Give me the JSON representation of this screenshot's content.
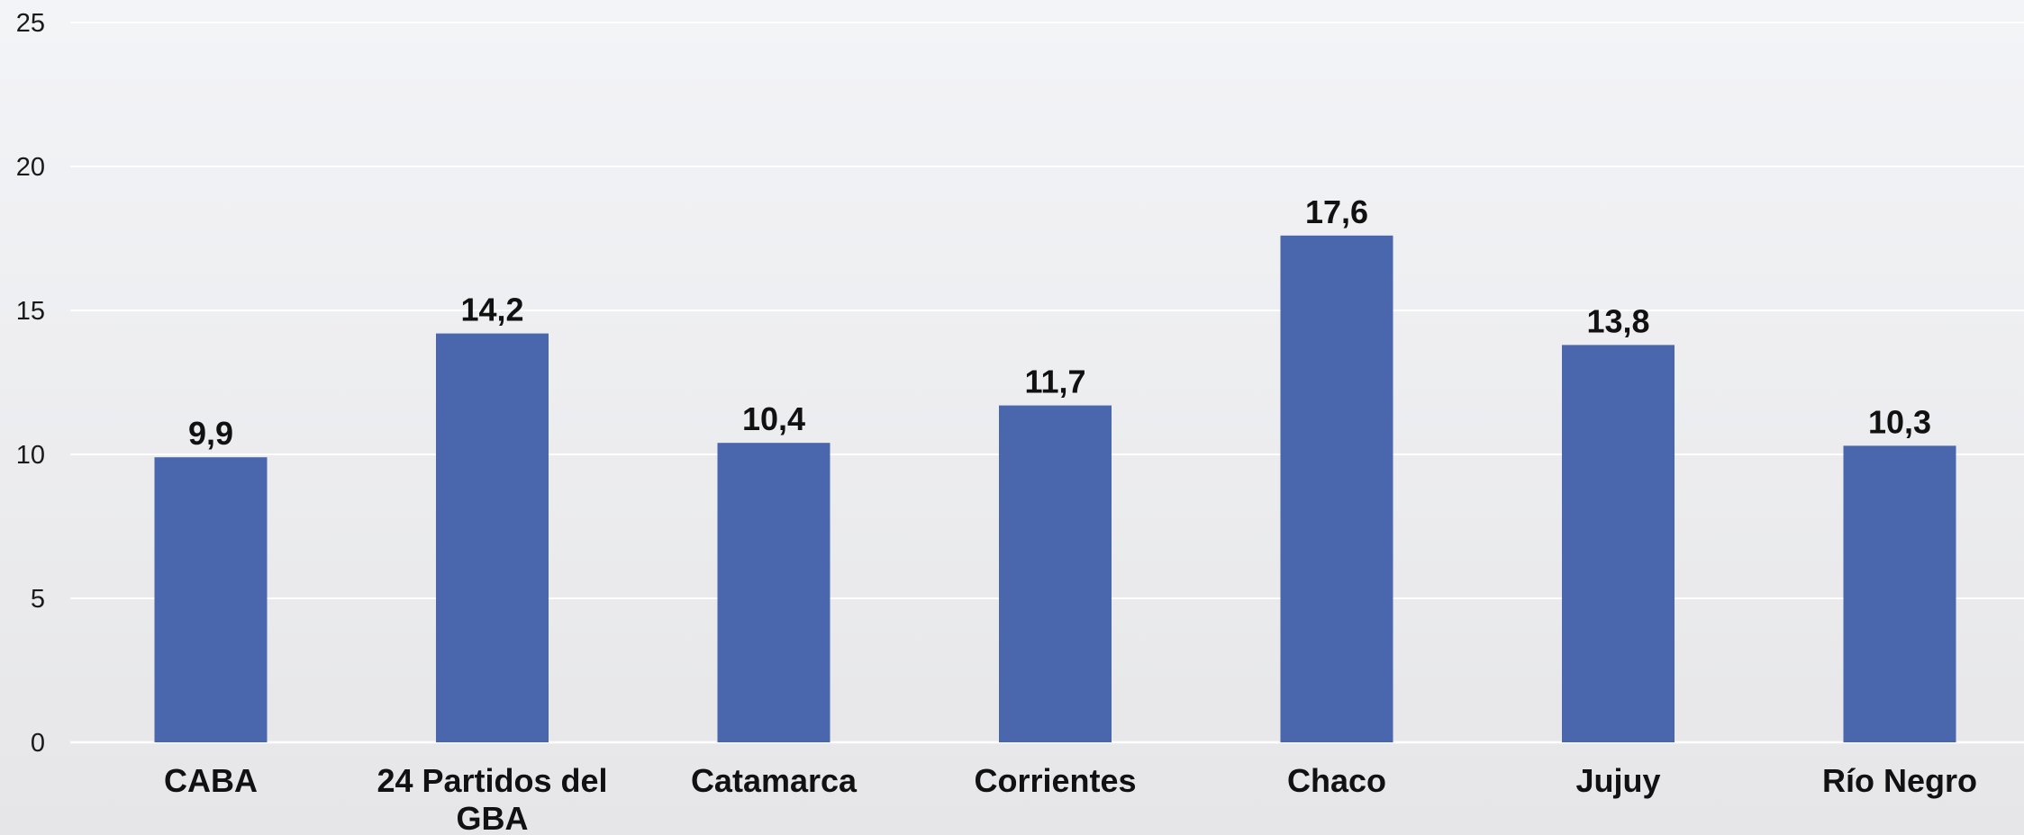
{
  "chart_data": {
    "type": "bar",
    "categories": [
      "CABA",
      "24 Partidos del GBA",
      "Catamarca",
      "Corrientes",
      "Chaco",
      "Jujuy",
      "Río Negro"
    ],
    "category_lines": [
      [
        "CABA"
      ],
      [
        "24 Partidos del",
        "GBA"
      ],
      [
        "Catamarca"
      ],
      [
        "Corrientes"
      ],
      [
        "Chaco"
      ],
      [
        "Jujuy"
      ],
      [
        "Río Negro"
      ]
    ],
    "values": [
      9.9,
      14.2,
      10.4,
      11.7,
      17.6,
      13.8,
      10.3
    ],
    "data_labels": [
      "9,9",
      "14,2",
      "10,4",
      "11,7",
      "17,6",
      "13,8",
      "10,3"
    ],
    "ylim": [
      0,
      25
    ],
    "yticks": [
      0,
      5,
      10,
      15,
      20,
      25
    ],
    "grid": true,
    "title": "",
    "xlabel": "",
    "ylabel": "",
    "colors": {
      "bar": "#4a66ad",
      "grid": "#ffffff",
      "axis": "#ffffff"
    }
  }
}
